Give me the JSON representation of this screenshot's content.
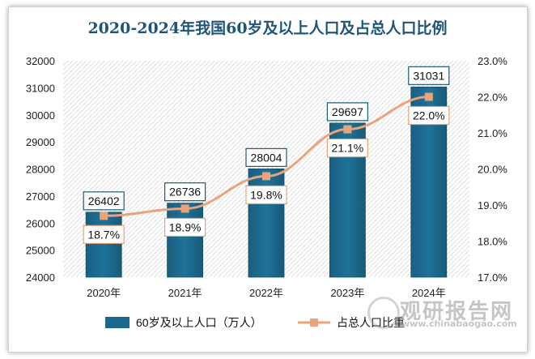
{
  "chart_data": {
    "type": "bar+line",
    "title": "2020-2024年我国60岁及以上人口及占总人口比例",
    "categories": [
      "2020年",
      "2021年",
      "2022年",
      "2023年",
      "2024年"
    ],
    "series": [
      {
        "name": "60岁及以上人口（万人）",
        "type": "bar",
        "axis": "left",
        "values": [
          26402,
          26736,
          28004,
          29697,
          31031
        ],
        "labels": [
          "26402",
          "26736",
          "28004",
          "29697",
          "31031"
        ]
      },
      {
        "name": "占总人口比重",
        "type": "line",
        "axis": "right",
        "values": [
          18.7,
          18.9,
          19.8,
          21.1,
          22.0
        ],
        "labels": [
          "18.7%",
          "18.9%",
          "19.8%",
          "21.1%",
          "22.0%"
        ]
      }
    ],
    "left_axis": {
      "min": 24000,
      "max": 32000,
      "step": 1000,
      "ticks": [
        "24000",
        "25000",
        "26000",
        "27000",
        "28000",
        "29000",
        "30000",
        "31000",
        "32000"
      ]
    },
    "right_axis": {
      "min": 17.0,
      "max": 23.0,
      "step": 1.0,
      "ticks": [
        "17.0%",
        "18.0%",
        "19.0%",
        "20.0%",
        "21.0%",
        "22.0%",
        "23.0%"
      ]
    },
    "legend_position": "bottom",
    "colors": {
      "bar": "#1b6a8c",
      "bar_dark": "#134d66",
      "line": "#e8a47a",
      "label_border_bar": "#1b5a78",
      "label_border_line": "#e8a47a",
      "grid_hatch": "#d9d9d9",
      "title": "#1f5578"
    }
  },
  "watermark": {
    "text": "观研报告网",
    "url": "www.chinabaogao.com"
  }
}
